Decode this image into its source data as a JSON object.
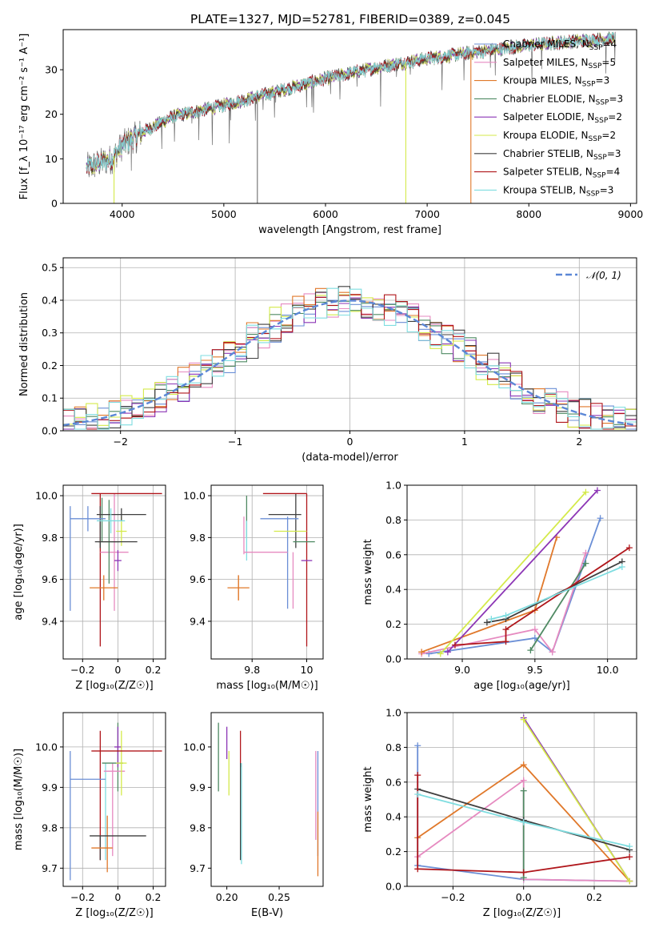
{
  "figure": {
    "title": "PLATE=1327, MJD=52781, FIBERID=0389, z=0.045"
  },
  "palette": {
    "chabrier_miles": "#6b8fd6",
    "salpeter_miles": "#e68ac0",
    "kroupa_miles": "#e0782a",
    "chabrier_elodie": "#4f8a63",
    "salpeter_elodie": "#8c35b5",
    "kroupa_elodie": "#d4ea4a",
    "chabrier_stelib": "#3f3f3f",
    "salpeter_stelib": "#b0161b",
    "kroupa_stelib": "#7fdde0",
    "data": "#6d6d6d",
    "gaussian": "#5b87d6"
  },
  "legend_spectrum": [
    {
      "key": "chabrier_miles",
      "text": "Chabrier MILES, N",
      "sub": "SSP",
      "n": "=4"
    },
    {
      "key": "salpeter_miles",
      "text": "Salpeter MILES, N",
      "sub": "SSP",
      "n": "=5"
    },
    {
      "key": "kroupa_miles",
      "text": "Kroupa MILES, N",
      "sub": "SSP",
      "n": "=3"
    },
    {
      "key": "chabrier_elodie",
      "text": "Chabrier ELODIE, N",
      "sub": "SSP",
      "n": "=3"
    },
    {
      "key": "salpeter_elodie",
      "text": "Salpeter ELODIE, N",
      "sub": "SSP",
      "n": "=2"
    },
    {
      "key": "kroupa_elodie",
      "text": "Kroupa ELODIE, N",
      "sub": "SSP",
      "n": "=2"
    },
    {
      "key": "chabrier_stelib",
      "text": "Chabrier STELIB, N",
      "sub": "SSP",
      "n": "=3"
    },
    {
      "key": "salpeter_stelib",
      "text": "Salpeter STELIB, N",
      "sub": "SSP",
      "n": "=4"
    },
    {
      "key": "kroupa_stelib",
      "text": "Kroupa STELIB, N",
      "sub": "SSP",
      "n": "=3"
    }
  ],
  "legend_resid": {
    "label": "𝒩(0, 1)"
  },
  "chart_data": [
    {
      "id": "spectrum",
      "type": "line",
      "xlabel": "wavelength [Angstrom, rest frame]",
      "ylabel": "Flux [f_λ 10⁻¹⁷ erg cm⁻² s⁻¹ A⁻¹]",
      "xlim": [
        3420,
        9060
      ],
      "ylim": [
        0,
        39
      ],
      "xticks": [
        4000,
        5000,
        6000,
        7000,
        8000,
        9000
      ],
      "yticks": [
        0,
        10,
        20,
        30
      ],
      "grid": false,
      "legend": "top-right",
      "continuum": [
        [
          3650,
          8
        ],
        [
          3900,
          10
        ],
        [
          4000,
          13
        ],
        [
          4200,
          16
        ],
        [
          4500,
          19.5
        ],
        [
          5000,
          22
        ],
        [
          5500,
          25
        ],
        [
          6000,
          28
        ],
        [
          6500,
          30.5
        ],
        [
          7000,
          32.5
        ],
        [
          7500,
          34
        ],
        [
          8000,
          35.5
        ],
        [
          8500,
          36.5
        ],
        [
          8850,
          37
        ]
      ],
      "spikes": [
        {
          "x": 3920,
          "ymin": 0,
          "series": "kroupa_elodie"
        },
        {
          "x": 5330,
          "ymin": 0,
          "series": "data"
        },
        {
          "x": 6790,
          "ymin": 0,
          "series": "kroupa_elodie"
        },
        {
          "x": 7430,
          "ymin": 0,
          "series": "kroupa_miles"
        }
      ]
    },
    {
      "id": "residuals",
      "type": "step",
      "xlabel": "(data-model)/error",
      "ylabel": "Normed distribution",
      "xlim": [
        -2.5,
        2.5
      ],
      "ylim": [
        0,
        0.53
      ],
      "xticks": [
        -2,
        -1,
        0,
        1,
        2
      ],
      "yticks": [
        0.0,
        0.1,
        0.2,
        0.3,
        0.4,
        0.5
      ],
      "grid": true,
      "legend": "top-right",
      "bin_width": 0.1
    },
    {
      "id": "age_vs_Z",
      "type": "errorbar",
      "xlabel": "Z [log₁₀(Z/Z☉)]",
      "ylabel": "age  [log₁₀(age/yr)]",
      "xlim": [
        -0.31,
        0.27
      ],
      "ylim": [
        9.22,
        10.05
      ],
      "xticks": [
        -0.2,
        0.0,
        0.2
      ],
      "yticks": [
        9.4,
        9.6,
        9.8,
        10.0
      ],
      "grid": true,
      "points": [
        {
          "series": "chabrier_miles",
          "x": -0.17,
          "xerr": 0.1,
          "y": 9.89,
          "yerr": 0.06
        },
        {
          "series": "salpeter_miles",
          "x": -0.02,
          "xerr": 0.08,
          "y": 9.73,
          "yerr": 0.28
        },
        {
          "series": "kroupa_miles",
          "x": -0.08,
          "xerr": 0.08,
          "y": 9.56,
          "yerr": 0.06
        },
        {
          "series": "chabrier_elodie",
          "x": -0.05,
          "xerr": 0.06,
          "y": 9.78,
          "yerr": 0.2
        },
        {
          "series": "salpeter_elodie",
          "x": 0.0,
          "xerr": 0.02,
          "y": 9.69,
          "yerr": 0.05
        },
        {
          "series": "kroupa_elodie",
          "x": 0.02,
          "xerr": 0.03,
          "y": 9.83,
          "yerr": 0.07
        },
        {
          "series": "chabrier_stelib",
          "x": 0.02,
          "xerr": 0.14,
          "y": 9.91,
          "yerr": 0.03
        },
        {
          "series": "salpeter_stelib",
          "x": 0.05,
          "xerr": 0.2,
          "y": 10.01,
          "yerr": 0.0
        },
        {
          "series": "chabrier_stelib",
          "x": -0.01,
          "xerr": 0.12,
          "y": 9.78,
          "yerr": 0.0
        },
        {
          "series": "kroupa_stelib",
          "x": -0.04,
          "xerr": 0.08,
          "y": 9.88,
          "yerr": 0.06
        }
      ],
      "vlines": [
        {
          "series": "chabrier_miles",
          "x": -0.27,
          "y0": 9.45,
          "y1": 9.95
        },
        {
          "series": "salpeter_stelib",
          "x": -0.1,
          "y0": 9.28,
          "y1": 10.01
        },
        {
          "series": "chabrier_stelib",
          "x": -0.1,
          "y0": 9.75,
          "y1": 9.95
        },
        {
          "series": "chabrier_elodie",
          "x": -0.09,
          "y0": 9.78,
          "y1": 9.99
        }
      ]
    },
    {
      "id": "age_vs_mass",
      "type": "errorbar",
      "xlabel": "mass [log₁₀(M/M☉)]",
      "ylabel": "",
      "xlim": [
        9.65,
        10.06
      ],
      "ylim": [
        9.22,
        10.05
      ],
      "xticks": [
        9.8,
        10.0
      ],
      "yticks": [
        9.4,
        9.6,
        9.8,
        10.0
      ],
      "grid": true,
      "points": [
        {
          "series": "chabrier_miles",
          "x": 9.9,
          "xerr": 0.07,
          "y": 9.89,
          "yerr": 0.0
        },
        {
          "series": "salpeter_miles",
          "x": 9.85,
          "xerr": 0.08,
          "y": 9.73,
          "yerr": 0.0
        },
        {
          "series": "kroupa_miles",
          "x": 9.75,
          "xerr": 0.04,
          "y": 9.56,
          "yerr": 0.06
        },
        {
          "series": "chabrier_elodie",
          "x": 9.99,
          "xerr": 0.04,
          "y": 9.78,
          "yerr": 0.0
        },
        {
          "series": "salpeter_elodie",
          "x": 10.0,
          "xerr": 0.02,
          "y": 9.69,
          "yerr": 0.0
        },
        {
          "series": "kroupa_elodie",
          "x": 9.94,
          "xerr": 0.06,
          "y": 9.83,
          "yerr": 0.0
        },
        {
          "series": "salpeter_stelib",
          "x": 9.92,
          "xerr": 0.08,
          "y": 10.01,
          "yerr": 0.0
        },
        {
          "series": "chabrier_stelib",
          "x": 9.92,
          "xerr": 0.06,
          "y": 9.91,
          "yerr": 0.0
        }
      ],
      "vlines": [
        {
          "series": "chabrier_elodie",
          "x": 9.78,
          "y0": 9.8,
          "y1": 10.0
        },
        {
          "series": "kroupa_stelib",
          "x": 9.78,
          "y0": 9.69,
          "y1": 9.88
        },
        {
          "series": "kroupa_miles",
          "x": 9.75,
          "y0": 9.5,
          "y1": 9.62
        },
        {
          "series": "salpeter_miles",
          "x": 9.77,
          "y0": 9.72,
          "y1": 9.9
        },
        {
          "series": "chabrier_miles",
          "x": 9.93,
          "y0": 9.46,
          "y1": 9.9
        },
        {
          "series": "salpeter_stelib",
          "x": 10.0,
          "y0": 9.28,
          "y1": 10.01
        },
        {
          "series": "chabrier_stelib",
          "x": 9.96,
          "y0": 9.75,
          "y1": 10.01
        },
        {
          "series": "salpeter_miles",
          "x": 9.95,
          "y0": 9.46,
          "y1": 9.73
        }
      ]
    },
    {
      "id": "mass_weight_vs_age",
      "type": "line",
      "xlabel": "age  [log₁₀(age/yr)]",
      "ylabel": "mass weight",
      "xlim": [
        8.62,
        10.2
      ],
      "ylim": [
        0.0,
        1.0
      ],
      "xticks": [
        9.0,
        9.5,
        10.0
      ],
      "yticks": [
        0.0,
        0.2,
        0.4,
        0.6,
        0.8,
        1.0
      ],
      "grid": true,
      "series": [
        {
          "key": "chabrier_miles",
          "points": [
            [
              8.77,
              0.03
            ],
            [
              9.5,
              0.12
            ],
            [
              9.62,
              0.04
            ],
            [
              9.95,
              0.81
            ]
          ]
        },
        {
          "key": "salpeter_miles",
          "points": [
            [
              8.72,
              0.03
            ],
            [
              9.5,
              0.17
            ],
            [
              9.62,
              0.04
            ],
            [
              9.85,
              0.61
            ]
          ]
        },
        {
          "key": "kroupa_miles",
          "points": [
            [
              8.72,
              0.04
            ],
            [
              9.5,
              0.28
            ],
            [
              9.65,
              0.7
            ]
          ]
        },
        {
          "key": "chabrier_elodie",
          "points": [
            [
              9.47,
              0.05
            ],
            [
              9.85,
              0.55
            ]
          ]
        },
        {
          "key": "salpeter_elodie",
          "points": [
            [
              8.9,
              0.04
            ],
            [
              9.93,
              0.97
            ]
          ]
        },
        {
          "key": "kroupa_elodie",
          "points": [
            [
              8.85,
              0.03
            ],
            [
              9.85,
              0.96
            ]
          ]
        },
        {
          "key": "chabrier_stelib",
          "points": [
            [
              9.17,
              0.21
            ],
            [
              9.3,
              0.23
            ],
            [
              10.1,
              0.56
            ]
          ]
        },
        {
          "key": "salpeter_stelib",
          "points": [
            [
              8.95,
              0.08
            ],
            [
              9.3,
              0.1
            ],
            [
              9.3,
              0.17
            ],
            [
              10.15,
              0.64
            ]
          ]
        },
        {
          "key": "kroupa_stelib",
          "points": [
            [
              9.2,
              0.23
            ],
            [
              9.3,
              0.25
            ],
            [
              10.1,
              0.53
            ]
          ]
        }
      ]
    },
    {
      "id": "mass_vs_Z",
      "type": "errorbar",
      "xlabel": "Z [log₁₀(Z/Z☉)]",
      "ylabel": "mass [log₁₀(M/M☉)]",
      "xlim": [
        -0.31,
        0.27
      ],
      "ylim": [
        9.655,
        10.085
      ],
      "xticks": [
        -0.2,
        0.0,
        0.2
      ],
      "yticks": [
        9.7,
        9.8,
        9.9,
        10.0
      ],
      "grid": true,
      "points": [
        {
          "series": "chabrier_miles",
          "x": -0.17,
          "xerr": 0.1,
          "y": 9.92,
          "yerr": 0.0
        },
        {
          "series": "salpeter_miles",
          "x": -0.02,
          "xerr": 0.06,
          "y": 9.94,
          "yerr": 0.0
        },
        {
          "series": "kroupa_miles",
          "x": -0.09,
          "xerr": 0.06,
          "y": 9.75,
          "yerr": 0.0
        },
        {
          "series": "chabrier_elodie",
          "x": -0.03,
          "xerr": 0.06,
          "y": 9.96,
          "yerr": 0.0
        },
        {
          "series": "salpeter_elodie",
          "x": 0.0,
          "xerr": 0.02,
          "y": 10.0,
          "yerr": 0.05
        },
        {
          "series": "kroupa_elodie",
          "x": 0.02,
          "xerr": 0.03,
          "y": 9.96,
          "yerr": 0.08
        },
        {
          "series": "salpeter_stelib",
          "x": 0.05,
          "xerr": 0.2,
          "y": 9.99,
          "yerr": 0.0
        },
        {
          "series": "chabrier_stelib",
          "x": 0.0,
          "xerr": 0.16,
          "y": 9.78,
          "yerr": 0.0
        }
      ],
      "vlines": [
        {
          "series": "chabrier_miles",
          "x": -0.27,
          "y0": 9.67,
          "y1": 9.99
        },
        {
          "series": "salpeter_stelib",
          "x": -0.1,
          "y0": 9.72,
          "y1": 10.04
        },
        {
          "series": "chabrier_stelib",
          "x": -0.1,
          "y0": 9.72,
          "y1": 9.78
        },
        {
          "series": "kroupa_miles",
          "x": -0.06,
          "y0": 9.69,
          "y1": 9.83
        },
        {
          "series": "salpeter_miles",
          "x": -0.03,
          "y0": 9.73,
          "y1": 9.96
        },
        {
          "series": "chabrier_elodie",
          "x": 0.0,
          "y0": 9.89,
          "y1": 10.06
        },
        {
          "series": "kroupa_stelib",
          "x": -0.07,
          "y0": 9.72,
          "y1": 9.96
        }
      ]
    },
    {
      "id": "mass_vs_ebv",
      "type": "errorbar",
      "xlabel": "E(B-V)",
      "ylabel": "",
      "xlim": [
        0.185,
        0.292
      ],
      "ylim": [
        9.655,
        10.085
      ],
      "xticks": [
        0.2,
        0.25
      ],
      "yticks": [
        9.7,
        9.8,
        9.9,
        10.0
      ],
      "grid": false,
      "vlines": [
        {
          "series": "chabrier_elodie",
          "x": 0.192,
          "y0": 9.89,
          "y1": 10.06
        },
        {
          "series": "salpeter_elodie",
          "x": 0.2,
          "y0": 9.97,
          "y1": 10.05
        },
        {
          "series": "kroupa_elodie",
          "x": 0.202,
          "y0": 9.88,
          "y1": 9.99
        },
        {
          "series": "salpeter_stelib",
          "x": 0.213,
          "y0": 9.95,
          "y1": 10.04
        },
        {
          "series": "chabrier_stelib",
          "x": 0.213,
          "y0": 9.72,
          "y1": 9.96
        },
        {
          "series": "kroupa_stelib",
          "x": 0.214,
          "y0": 9.71,
          "y1": 9.96
        },
        {
          "series": "salpeter_miles",
          "x": 0.285,
          "y0": 9.77,
          "y1": 9.99
        },
        {
          "series": "chabrier_miles",
          "x": 0.287,
          "y0": 9.73,
          "y1": 9.99
        },
        {
          "series": "kroupa_miles",
          "x": 0.287,
          "y0": 9.68,
          "y1": 9.84
        }
      ]
    },
    {
      "id": "mass_weight_vs_Z",
      "type": "line",
      "xlabel": "Z [log₁₀(Z/Z☉)]",
      "ylabel": "mass weight",
      "xlim": [
        -0.33,
        0.32
      ],
      "ylim": [
        0.0,
        1.0
      ],
      "xticks": [
        -0.2,
        0.0,
        0.2
      ],
      "yticks": [
        0.0,
        0.2,
        0.4,
        0.6,
        0.8,
        1.0
      ],
      "grid": true,
      "series": [
        {
          "key": "chabrier_miles",
          "points": [
            [
              -0.3,
              0.81
            ],
            [
              -0.3,
              0.12
            ],
            [
              0.0,
              0.04
            ],
            [
              0.3,
              0.03
            ]
          ]
        },
        {
          "key": "salpeter_miles",
          "points": [
            [
              -0.3,
              0.17
            ],
            [
              0.0,
              0.61
            ],
            [
              0.0,
              0.04
            ],
            [
              0.3,
              0.03
            ]
          ]
        },
        {
          "key": "kroupa_miles",
          "points": [
            [
              -0.3,
              0.28
            ],
            [
              0.0,
              0.7
            ],
            [
              0.3,
              0.03
            ]
          ]
        },
        {
          "key": "chabrier_elodie",
          "points": [
            [
              0.0,
              0.55
            ],
            [
              0.0,
              0.05
            ]
          ]
        },
        {
          "key": "salpeter_elodie",
          "points": [
            [
              0.0,
              0.97
            ],
            [
              0.3,
              0.03
            ]
          ]
        },
        {
          "key": "kroupa_elodie",
          "points": [
            [
              0.0,
              0.96
            ],
            [
              0.3,
              0.03
            ]
          ]
        },
        {
          "key": "chabrier_stelib",
          "points": [
            [
              -0.3,
              0.56
            ],
            [
              0.0,
              0.38
            ],
            [
              0.3,
              0.21
            ]
          ]
        },
        {
          "key": "salpeter_stelib",
          "points": [
            [
              -0.3,
              0.64
            ],
            [
              -0.3,
              0.1
            ],
            [
              0.0,
              0.08
            ],
            [
              0.3,
              0.17
            ]
          ]
        },
        {
          "key": "kroupa_stelib",
          "points": [
            [
              -0.3,
              0.53
            ],
            [
              0.0,
              0.37
            ],
            [
              0.3,
              0.23
            ]
          ]
        }
      ]
    }
  ]
}
